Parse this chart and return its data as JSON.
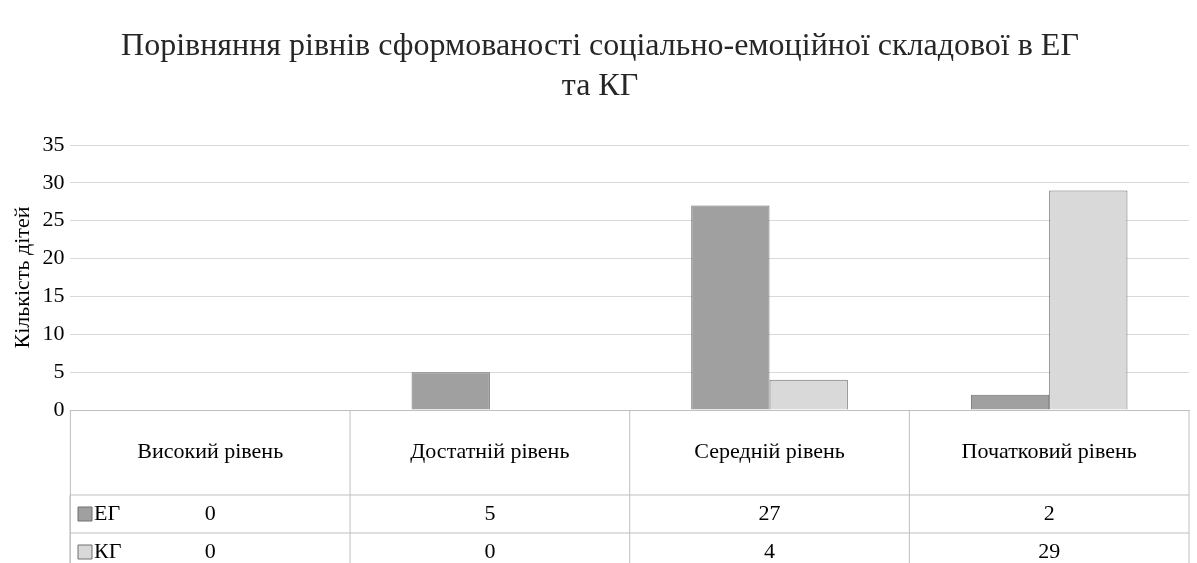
{
  "chart_data": {
    "type": "bar",
    "title": "Порівняння рівнів сформованості соціально-емоційної складової  в ЕГ та КГ",
    "ylabel": "Кількість дітей",
    "categories": [
      "Високий рівень",
      "Достатній рівень",
      "Середній рівень",
      "Початковий рівень"
    ],
    "series": [
      {
        "name": "ЕГ",
        "color": "#a0a0a0",
        "values": [
          0,
          5,
          27,
          2
        ]
      },
      {
        "name": "КГ",
        "color": "#d9d9d9",
        "values": [
          0,
          0,
          4,
          29
        ]
      }
    ],
    "ylim": [
      0,
      35
    ],
    "yticks": [
      0,
      5,
      10,
      15,
      20,
      25,
      30,
      35
    ],
    "grid": "y",
    "legend": "bottom",
    "data_labels": true
  }
}
